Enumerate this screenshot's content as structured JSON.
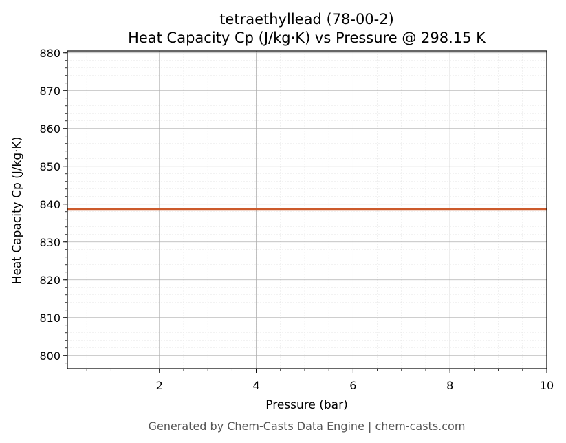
{
  "chart_data": {
    "type": "line",
    "title": "tetraethyllead (78-00-2)",
    "subtitle": "Heat Capacity Cp (J/kg·K) vs Pressure @ 298.15 K",
    "xlabel": "Pressure (bar)",
    "ylabel": "Heat Capacity Cp (J/kg·K)",
    "xlim": [
      0.1,
      10
    ],
    "ylim": [
      796.5,
      880.5
    ],
    "x_ticks": [
      2,
      4,
      6,
      8,
      10
    ],
    "y_ticks": [
      800,
      810,
      820,
      830,
      840,
      850,
      860,
      870,
      880
    ],
    "x_minor_step": 0.5,
    "y_minor_step": 2,
    "grid": true,
    "series": [
      {
        "color": "#cc5a2b",
        "x": [
          0.1,
          1,
          2,
          3,
          4,
          5,
          6,
          7,
          8,
          9,
          10
        ],
        "y": [
          838.6,
          838.6,
          838.6,
          838.6,
          838.6,
          838.6,
          838.6,
          838.6,
          838.6,
          838.6,
          838.6
        ]
      }
    ]
  },
  "footer": "Generated by Chem-Casts Data Engine | chem-casts.com"
}
